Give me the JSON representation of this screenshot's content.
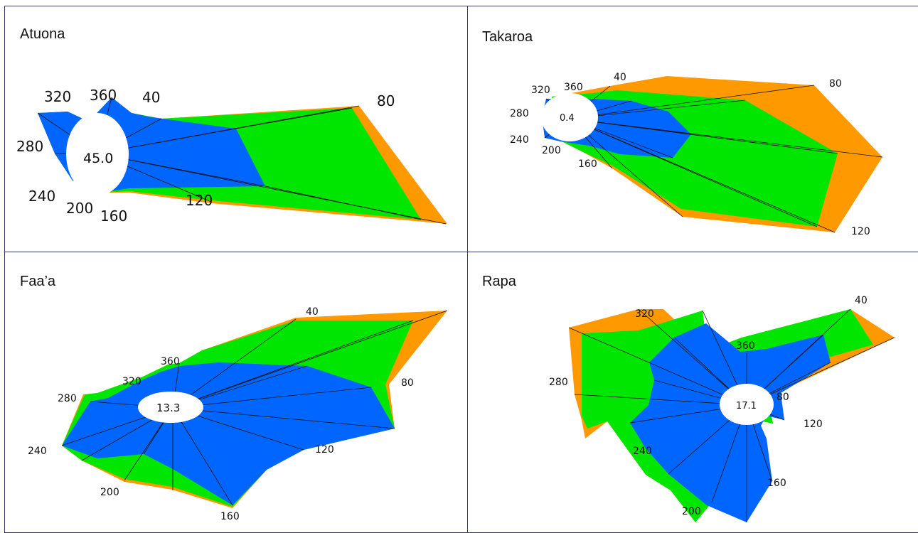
{
  "chart_data": [
    {
      "type": "radar",
      "panel": "Atuona",
      "center_value": "45.0",
      "band_colors": [
        "#0066ff",
        "#00e600",
        "#ff9900"
      ],
      "direction_labels": [
        "40",
        "80",
        "120",
        "160",
        "200",
        "240",
        "280",
        "320",
        "360"
      ]
    },
    {
      "type": "radar",
      "panel": "Takaroa",
      "center_value": "0.4",
      "band_colors": [
        "#0066ff",
        "#00e600",
        "#ff9900"
      ],
      "direction_labels": [
        "40",
        "80",
        "120",
        "160",
        "200",
        "240",
        "280",
        "320",
        "360"
      ]
    },
    {
      "type": "radar",
      "panel": "Faa’a",
      "center_value": "13.3",
      "band_colors": [
        "#0066ff",
        "#00e600",
        "#ff9900"
      ],
      "direction_labels": [
        "40",
        "80",
        "120",
        "160",
        "200",
        "240",
        "280",
        "320",
        "360"
      ]
    },
    {
      "type": "radar",
      "panel": "Rapa",
      "center_value": "17.1",
      "band_colors": [
        "#0066ff",
        "#00e600",
        "#ff9900"
      ],
      "direction_labels": [
        "40",
        "80",
        "120",
        "160",
        "200",
        "240",
        "280",
        "320",
        "360"
      ]
    }
  ]
}
